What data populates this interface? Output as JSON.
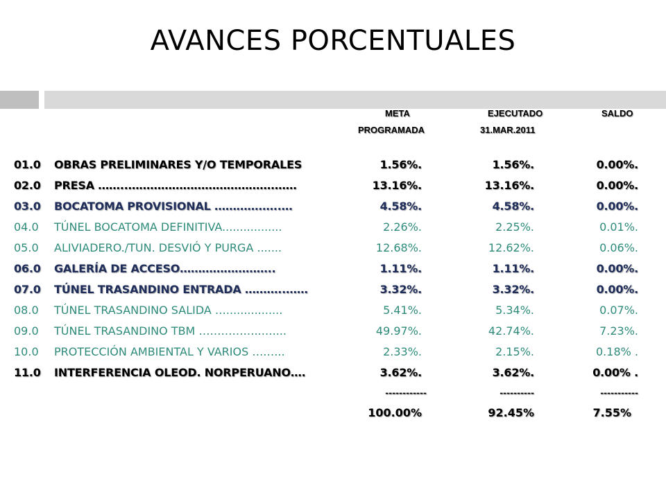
{
  "title": "AVANCES PORCENTUALES",
  "headers": {
    "meta_line1": "META",
    "meta_line2": "PROGRAMADA",
    "ejec_line1": "EJECUTADO",
    "ejec_line2": "31.MAR.2011",
    "saldo": "SALDO"
  },
  "rows": [
    {
      "code": "01.0",
      "label": "OBRAS PRELIMINARES Y/O TEMPORALES",
      "meta": "1.56%.",
      "ejecutado": "1.56%.",
      "saldo": "0.00%.",
      "style": "bold"
    },
    {
      "code": "02.0",
      "label": "PRESA ……..………………………………….……",
      "meta": "13.16%.",
      "ejecutado": "13.16%.",
      "saldo": "0.00%.",
      "style": "bold"
    },
    {
      "code": "03.0",
      "label": "BOCATOMA PROVISIONAL ………….…..…",
      "meta": "4.58%.",
      "ejecutado": "4.58%.",
      "saldo": "0.00%.",
      "style": "navy"
    },
    {
      "code": "04.0",
      "label": "TÚNEL BOCATOMA DEFINITIVA.................",
      "meta": "2.26%.",
      "ejecutado": "2.25%.",
      "saldo": "0.01%.",
      "style": "plain"
    },
    {
      "code": "05.0",
      "label": "ALIVIADERO./TUN. DESVIÓ Y PURGA .......",
      "meta": "12.68%.",
      "ejecutado": "12.62%.",
      "saldo": "0.06%.",
      "style": "plain"
    },
    {
      "code": "06.0",
      "label": "GALERÍA DE ACCESO……………………..",
      "meta": "1.11%.",
      "ejecutado": "1.11%.",
      "saldo": "0.00%.",
      "style": "navy"
    },
    {
      "code": "07.0",
      "label": "TÚNEL TRASANDINO ENTRADA ………..……",
      "meta": "3.32%.",
      "ejecutado": "3.32%.",
      "saldo": "0.00%.",
      "style": "navy"
    },
    {
      "code": "08.0",
      "label": "TÚNEL TRASANDINO SALIDA …................",
      "meta": "5.41%.",
      "ejecutado": "5.34%.",
      "saldo": "0.07%.",
      "style": "plain"
    },
    {
      "code": "09.0",
      "label": "TÚNEL TRASANDINO TBM ……………..…....",
      "meta": "49.97%.",
      "ejecutado": "42.74%.",
      "saldo": "7.23%.",
      "style": "plain"
    },
    {
      "code": "10.0",
      "label": "PROTECCIÓN AMBIENTAL Y VARIOS ….…..",
      "meta": "2.33%.",
      "ejecutado": "2.15%.",
      "saldo": "0.18% .",
      "style": "plain"
    },
    {
      "code": "11.0",
      "label": "INTERFERENCIA OLEOD. NORPERUANO….",
      "meta": "3.62%.",
      "ejecutado": "3.62%.",
      "saldo": "0.00% .",
      "style": "bold"
    }
  ],
  "separators": {
    "meta": "------------",
    "ejecutado": "----------",
    "saldo": "-----------"
  },
  "totals": {
    "meta": "100.00%",
    "ejecutado": "92.45%",
    "saldo": "7.55%"
  },
  "colors": {
    "plain_text": "#2e8b7a",
    "navy_text": "#1f2d5a",
    "bold_text": "#000000",
    "accent_block": "#bfbfbf",
    "accent_bar": "#d9d9d9"
  }
}
